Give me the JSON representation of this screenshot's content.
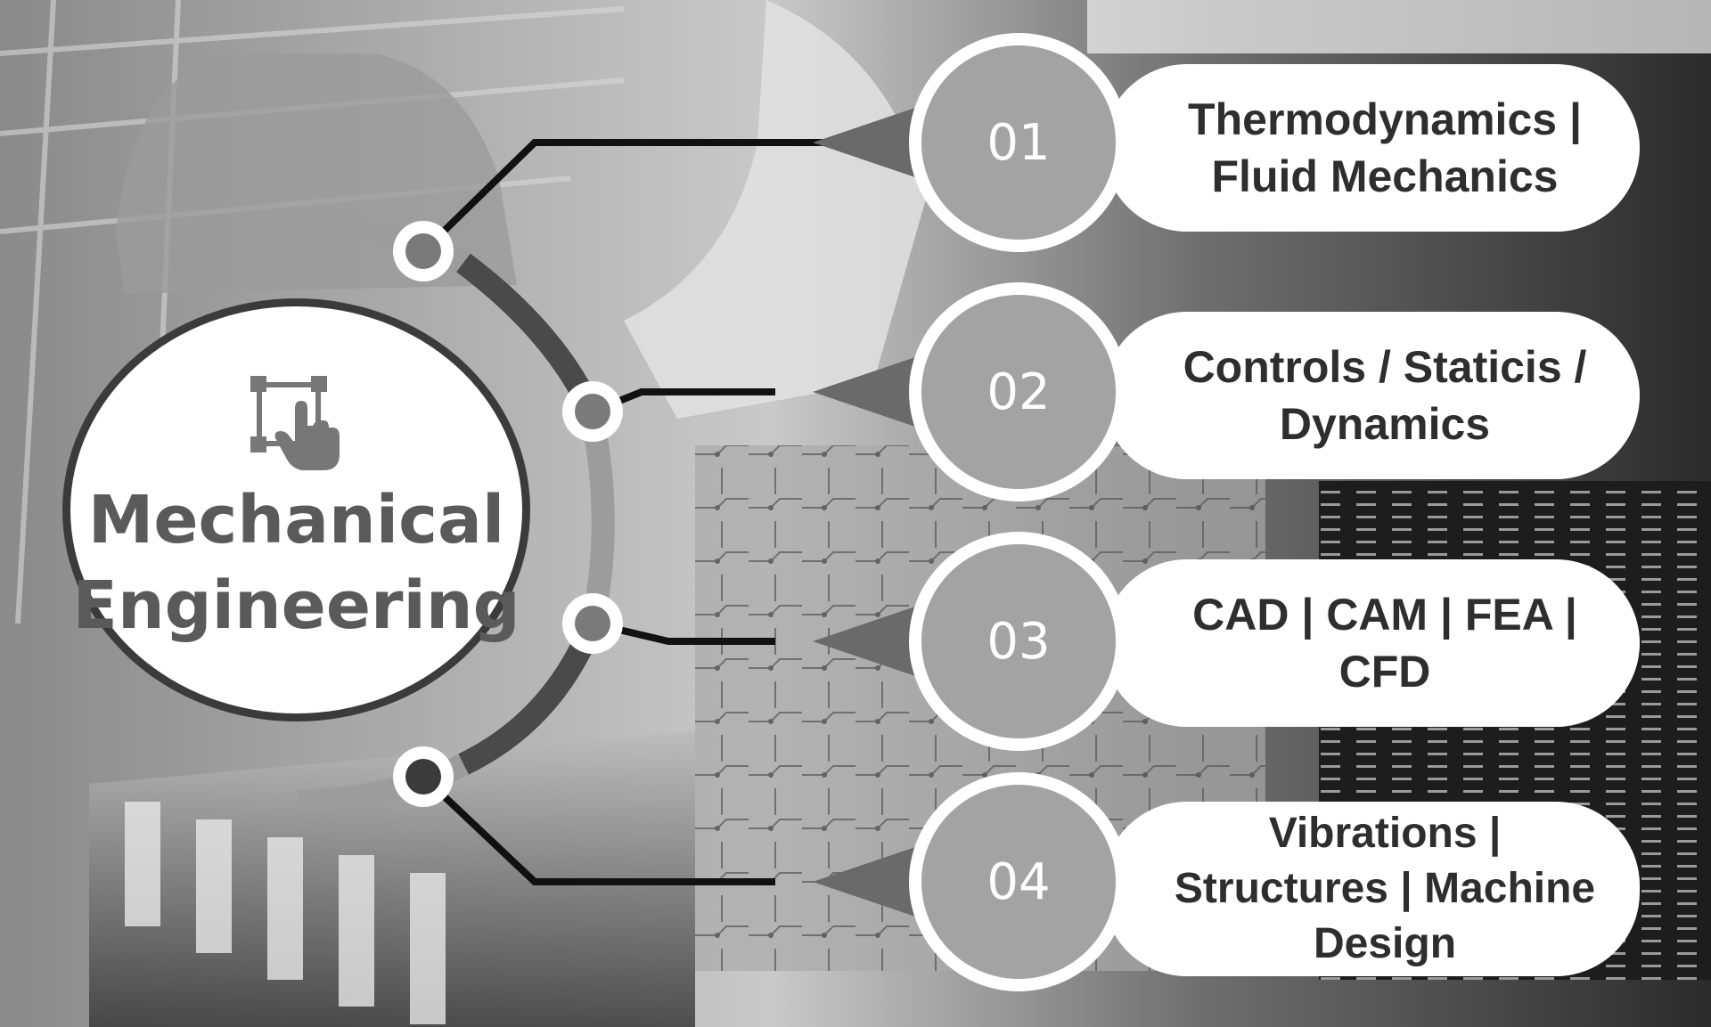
{
  "hub": {
    "title_line1": "Mechanical",
    "title_line2": "Engineering",
    "icon": "hand-pointer-selection-icon"
  },
  "branches": [
    {
      "number": "01",
      "line1": "Thermodynamics |",
      "line2": "Fluid Mechanics",
      "line3": ""
    },
    {
      "number": "02",
      "line1": "Controls / Staticis /",
      "line2": "Dynamics",
      "line3": ""
    },
    {
      "number": "03",
      "line1": "CAD | CAM | FEA |",
      "line2": "CFD",
      "line3": ""
    },
    {
      "number": "04",
      "line1": "Vibrations |",
      "line2": "Structures | Machine",
      "line3": "Design"
    }
  ],
  "colors": {
    "ring_dark": "#4a4a4a",
    "ring_light": "#9c9c9c",
    "number_fill": "#a3a3a3",
    "label_text": "#2e2e2e",
    "hub_text": "#5a5a5a"
  },
  "background": "grayscale industrial factory photo with robotic arm, car body and circuit board"
}
